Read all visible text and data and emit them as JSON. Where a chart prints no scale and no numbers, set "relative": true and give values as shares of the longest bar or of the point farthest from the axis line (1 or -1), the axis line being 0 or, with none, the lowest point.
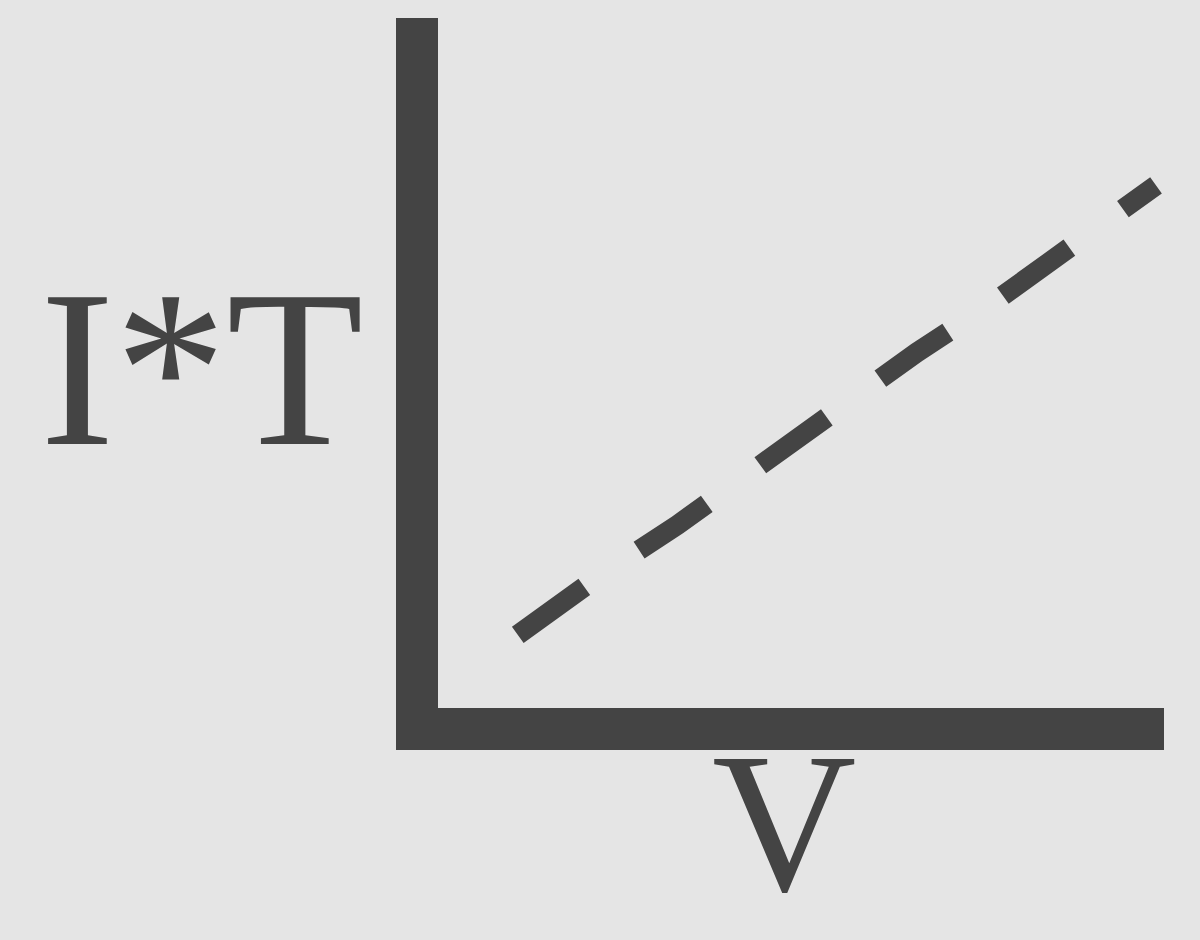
{
  "chart_data": {
    "type": "line",
    "xlabel": "V",
    "ylabel": "I*T",
    "categories": [
      null,
      null,
      null,
      null,
      null,
      null,
      null,
      null,
      null,
      null
    ],
    "series": [
      {
        "color": "#444444",
        "values": [
          null,
          0.14,
          0.25,
          0.35,
          0.46,
          0.57,
          0.68,
          0.78,
          0.89,
          1
        ]
      }
    ],
    "relative": true,
    "line_style": "dashed"
  }
}
